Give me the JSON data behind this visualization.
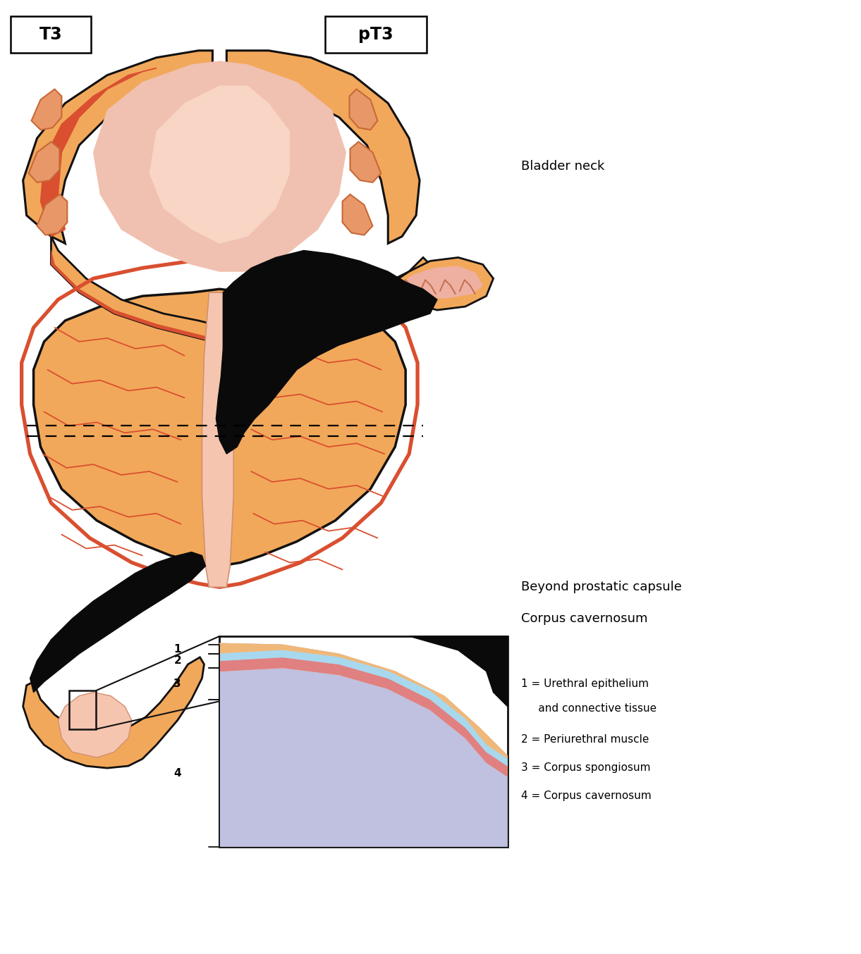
{
  "title_left": "T3",
  "title_right": "pT3",
  "label_bladder_neck": "Bladder neck",
  "label_beyond_1": "Beyond prostatic capsule",
  "label_beyond_2": "Corpus cavernosum",
  "legend_1a": "1 = Urethral epithelium",
  "legend_1b": "     and connective tissue",
  "legend_2": "2 = Periurethral muscle",
  "legend_3": "3 = Corpus spongiosum",
  "legend_4": "4 = Corpus cavernosum",
  "color_bg": "#ffffff",
  "color_orange": "#F2A85A",
  "color_orange_dark": "#E8954A",
  "color_orange_fold": "#E89060",
  "color_red": "#D94F30",
  "color_pink_light": "#F5C5B0",
  "color_pink_medium": "#EEA090",
  "color_pink_bladder": "#F0C0B0",
  "color_pink_center": "#F8D8C8",
  "color_tumor": "#0a0a0a",
  "color_outline": "#111111",
  "color_wavy": "#D95030",
  "color_light_blue": "#A8D8EE",
  "color_pink_muscle": "#E08080",
  "color_lavender": "#C0C0E0",
  "color_peach_inset": "#F0B878"
}
